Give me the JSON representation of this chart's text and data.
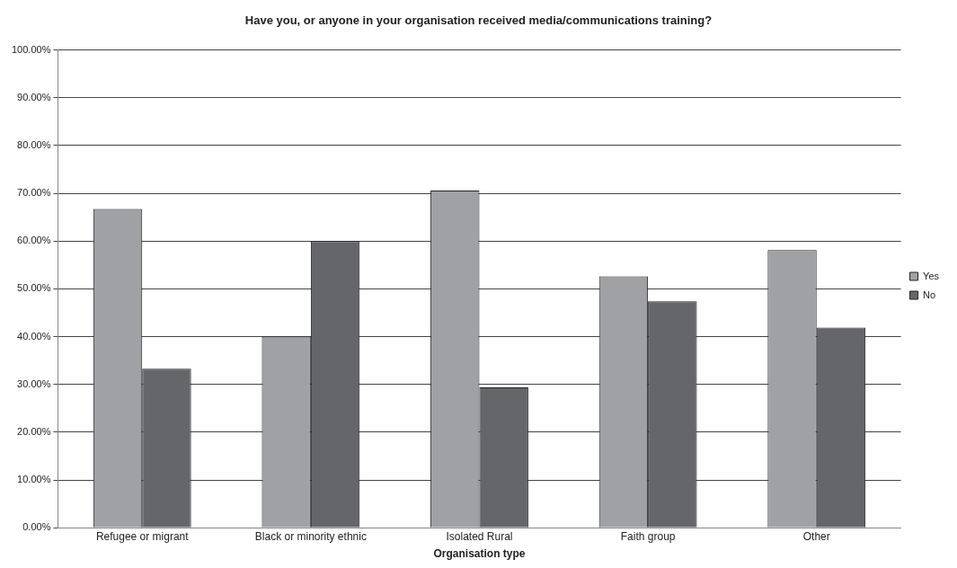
{
  "chart_data": {
    "type": "bar",
    "title": "Have you, or anyone in your organisation received media/communications training?",
    "xlabel": "Organisation type",
    "categories": [
      "Refugee or migrant",
      "Black or minority ethnic",
      "Isolated Rural",
      "Faith group",
      "Other"
    ],
    "series": [
      {
        "name": "Yes",
        "color": "#a0a1a5",
        "values": [
          66.7,
          40,
          70.6,
          52.6,
          58.1
        ]
      },
      {
        "name": "No",
        "color": "#65666a",
        "values": [
          33.3,
          60,
          29.4,
          47.4,
          41.9
        ]
      }
    ],
    "ylim": [
      0,
      100
    ],
    "yticks": [
      {
        "value": 0,
        "label": "0.00%"
      },
      {
        "value": 10,
        "label": "10.00%"
      },
      {
        "value": 20,
        "label": "20.00%"
      },
      {
        "value": 30,
        "label": "30.00%"
      },
      {
        "value": 40,
        "label": "40.00%"
      },
      {
        "value": 50,
        "label": "50.00%"
      },
      {
        "value": 60,
        "label": "60.00%"
      },
      {
        "value": 70,
        "label": "70.00%"
      },
      {
        "value": 80,
        "label": "80.00%"
      },
      {
        "value": 90,
        "label": "90.00%"
      },
      {
        "value": 100,
        "label": "100.00%"
      }
    ],
    "grid": "y",
    "legend": "right"
  }
}
